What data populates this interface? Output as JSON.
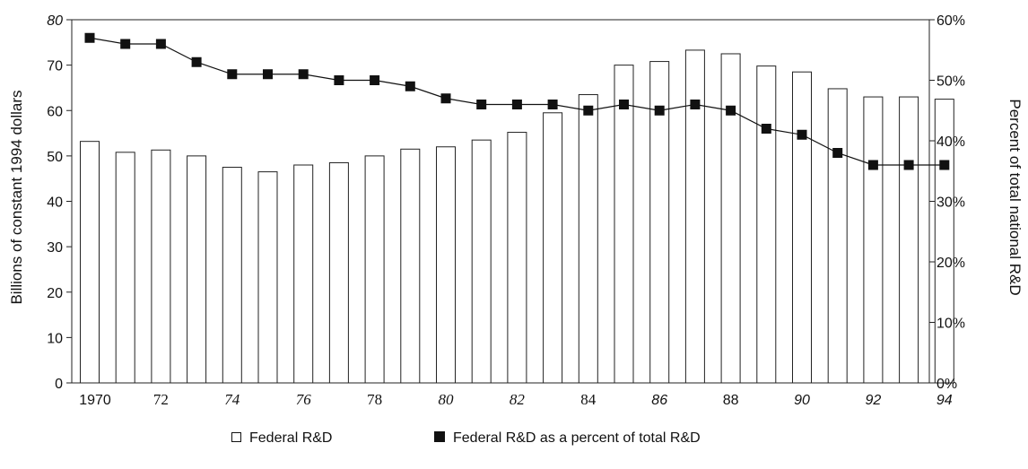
{
  "chart_data": {
    "type": "bar+line",
    "title": "",
    "x": [
      1970,
      1971,
      1972,
      1973,
      1974,
      1975,
      1976,
      1977,
      1978,
      1979,
      1980,
      1981,
      1982,
      1983,
      1984,
      1985,
      1986,
      1987,
      1988,
      1989,
      1990,
      1991,
      1992,
      1993,
      1994
    ],
    "x_tick_labels": [
      "1970",
      "72",
      "74",
      "76",
      "78",
      "80",
      "82",
      "84",
      "86",
      "88",
      "90",
      "92",
      "94"
    ],
    "y_left": {
      "label": "Billions of constant 1994 dollars",
      "lim": [
        0,
        80
      ],
      "ticks": [
        "0",
        "10",
        "20",
        "30",
        "40",
        "50",
        "60",
        "70",
        "80"
      ]
    },
    "y_right": {
      "label": "Percent of total national R&D",
      "lim": [
        0,
        60
      ],
      "ticks": [
        "0%",
        "10%",
        "20%",
        "30%",
        "40%",
        "50%",
        "60%"
      ]
    },
    "series": [
      {
        "name": "Federal R&D",
        "type": "bar",
        "axis": "left",
        "values": [
          53.2,
          50.8,
          51.3,
          50.0,
          47.5,
          46.5,
          48.0,
          48.5,
          50.0,
          51.5,
          52.0,
          53.5,
          55.2,
          59.5,
          63.5,
          70.0,
          70.8,
          73.3,
          72.5,
          69.8,
          68.5,
          64.8,
          63.0,
          63.0,
          62.5
        ]
      },
      {
        "name": "Federal R&D as a percent of total R&D",
        "type": "line",
        "axis": "right",
        "values": [
          57.0,
          56.0,
          56.0,
          53.0,
          51.0,
          51.0,
          51.0,
          50.0,
          50.0,
          49.0,
          47.0,
          46.0,
          46.0,
          46.0,
          45.0,
          46.0,
          45.0,
          46.0,
          45.0,
          42.0,
          41.0,
          38.0,
          36.0,
          36.0,
          36.0
        ]
      }
    ],
    "grid": false,
    "legend_position": "bottom-center"
  },
  "legend": {
    "bars_label": "Federal R&D",
    "line_label": "Federal R&D as a percent of total R&D"
  }
}
